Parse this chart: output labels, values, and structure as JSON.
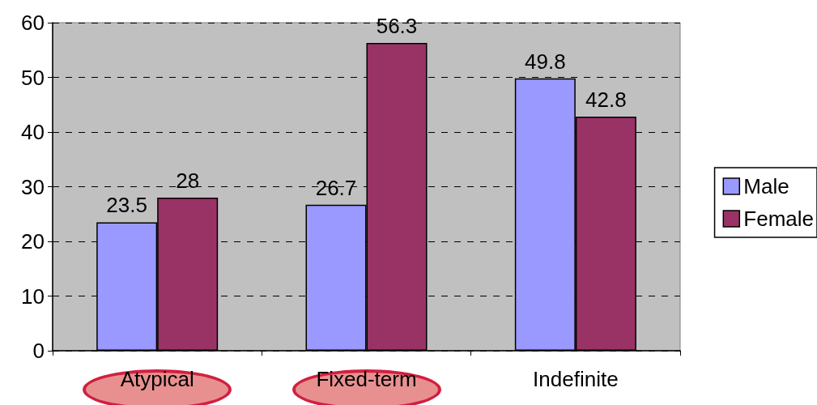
{
  "chart_data": {
    "type": "bar",
    "categories": [
      "Atypical",
      "Fixed-term",
      "Indefinite"
    ],
    "series": [
      {
        "name": "Male",
        "color": "#9999ff",
        "values": [
          23.5,
          26.7,
          49.8
        ]
      },
      {
        "name": "Female",
        "color": "#993366",
        "values": [
          28,
          56.3,
          42.8
        ]
      }
    ],
    "ylim": [
      0,
      60
    ],
    "yticks": [
      0,
      10,
      20,
      30,
      40,
      50,
      60
    ],
    "grid": "y",
    "legend": "right",
    "data_labels": true
  }
}
